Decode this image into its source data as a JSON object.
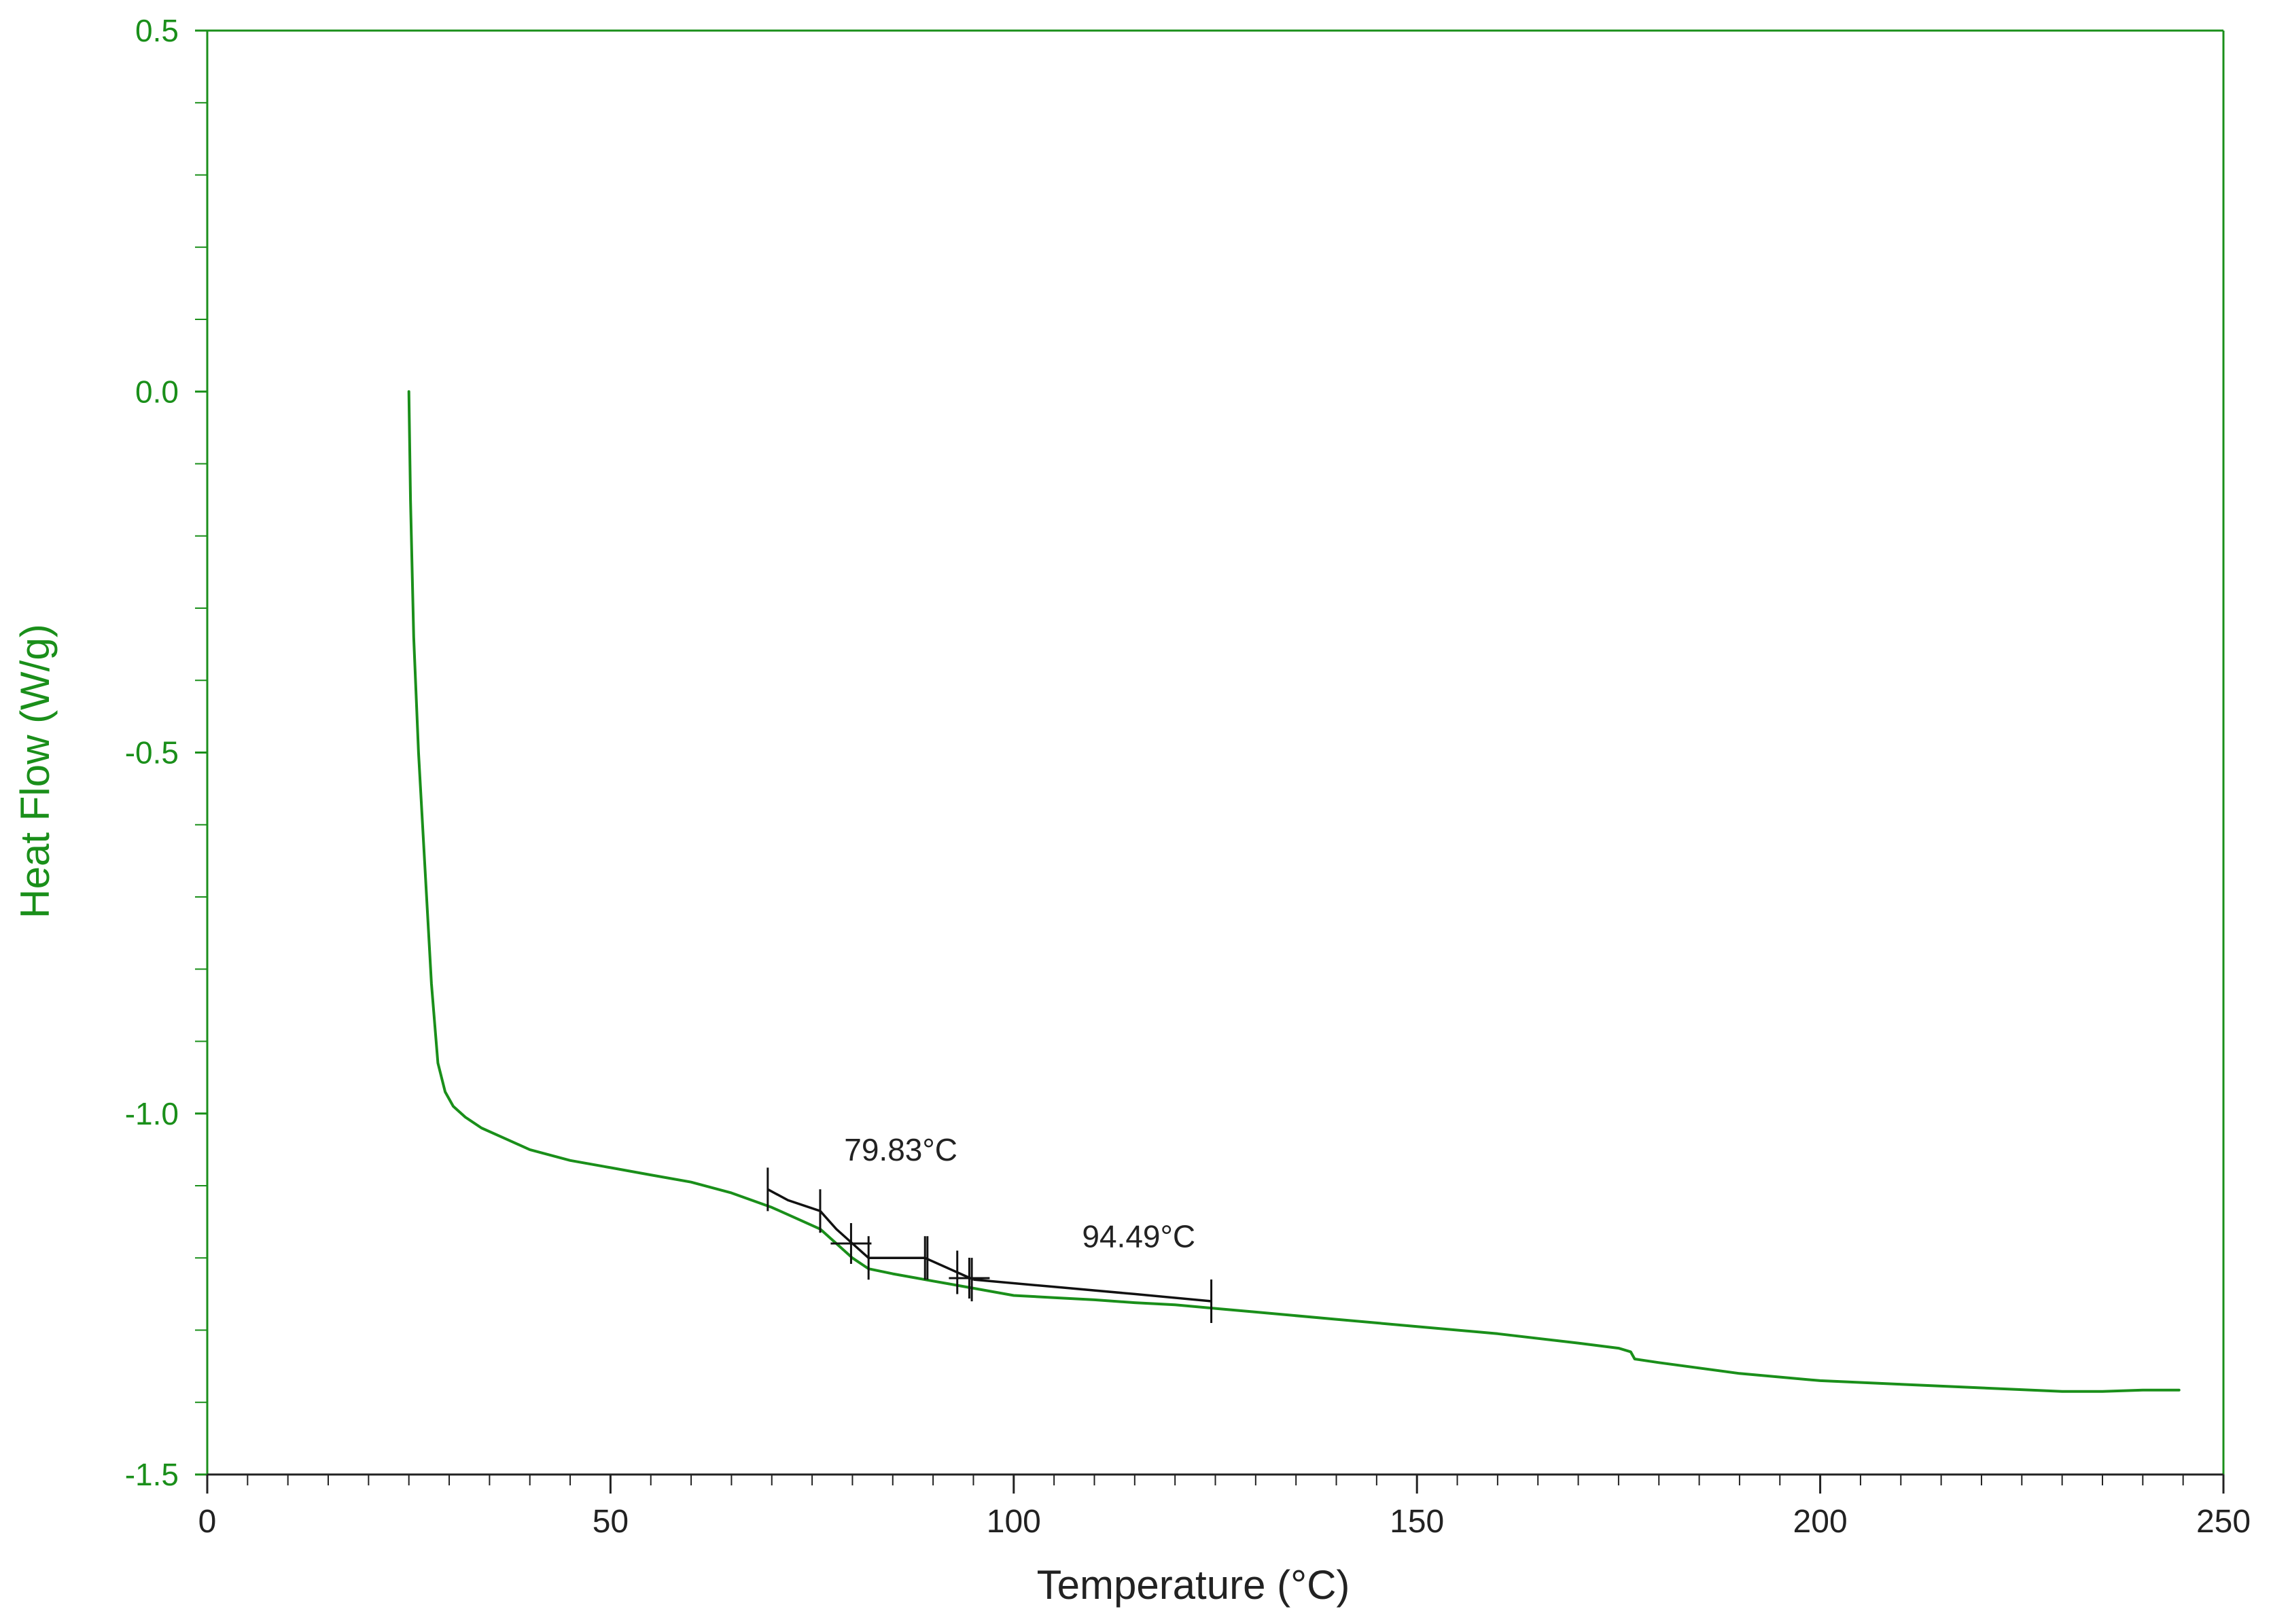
{
  "chart_data": {
    "type": "line",
    "title": "",
    "xlabel": "Temperature (°C)",
    "ylabel": "Heat Flow (W/g)",
    "xlim": [
      0,
      250
    ],
    "ylim": [
      -1.5,
      0.5
    ],
    "x_ticks": [
      0,
      50,
      100,
      150,
      200,
      250
    ],
    "x_tick_labels": [
      "0",
      "50",
      "100",
      "150",
      "200",
      "250"
    ],
    "y_ticks": [
      -1.5,
      -1.0,
      -0.5,
      0.0,
      0.5
    ],
    "y_tick_labels": [
      "-1.5",
      "-1.0",
      "-0.5",
      "0.0",
      "0.5"
    ],
    "grid": false,
    "colors": {
      "series": "#1a8f1a",
      "axis_y": "#1a8f1a",
      "axis_x": "#222222",
      "analysis": "#111111"
    },
    "series": [
      {
        "name": "Heat Flow",
        "x": [
          25.0,
          25.2,
          25.6,
          26.2,
          27.0,
          27.8,
          28.6,
          29.5,
          30.5,
          32.0,
          34.0,
          37.0,
          40.0,
          45.0,
          50.0,
          55.0,
          60.0,
          65.0,
          70.0,
          73.0,
          76.0,
          78.0,
          80.0,
          82.0,
          85.0,
          88.0,
          90.0,
          93.0,
          95.0,
          100.0,
          105.0,
          110.0,
          115.0,
          120.0,
          125.0,
          130.0,
          140.0,
          150.0,
          160.0,
          170.0,
          175.0,
          176.5,
          177.0,
          180.0,
          190.0,
          200.0,
          210.0,
          220.0,
          230.0,
          235.0,
          240.0,
          244.5
        ],
        "y": [
          0.0,
          -0.15,
          -0.34,
          -0.5,
          -0.66,
          -0.82,
          -0.93,
          -0.97,
          -0.99,
          -1.005,
          -1.02,
          -1.035,
          -1.05,
          -1.065,
          -1.075,
          -1.085,
          -1.095,
          -1.11,
          -1.13,
          -1.145,
          -1.16,
          -1.18,
          -1.2,
          -1.215,
          -1.222,
          -1.228,
          -1.232,
          -1.238,
          -1.242,
          -1.252,
          -1.255,
          -1.258,
          -1.262,
          -1.265,
          -1.27,
          -1.275,
          -1.285,
          -1.295,
          -1.305,
          -1.318,
          -1.325,
          -1.33,
          -1.34,
          -1.345,
          -1.36,
          -1.37,
          -1.375,
          -1.38,
          -1.385,
          -1.385,
          -1.383,
          -1.383
        ]
      }
    ],
    "analysis_lines": [
      {
        "x": [
          69.5,
          72.0,
          76.0
        ],
        "y": [
          -1.105,
          -1.12,
          -1.135
        ]
      },
      {
        "x": [
          76.0,
          78.0,
          80.0,
          82.0
        ],
        "y": [
          -1.135,
          -1.16,
          -1.18,
          -1.2
        ]
      },
      {
        "x": [
          82.0,
          86.0,
          89.0
        ],
        "y": [
          -1.2,
          -1.2,
          -1.2
        ]
      },
      {
        "x": [
          89.0,
          93.0,
          95.0
        ],
        "y": [
          -1.2,
          -1.22,
          -1.23
        ]
      },
      {
        "x": [
          95.0,
          105.0,
          115.0,
          124.5
        ],
        "y": [
          -1.23,
          -1.24,
          -1.25,
          -1.26
        ]
      }
    ],
    "analysis_markers": [
      {
        "x": 69.5,
        "y": -1.105,
        "kind": "v"
      },
      {
        "x": 76.0,
        "y": -1.135,
        "kind": "v"
      },
      {
        "x": 79.83,
        "y": -1.18,
        "kind": "plus"
      },
      {
        "x": 82.0,
        "y": -1.2,
        "kind": "v"
      },
      {
        "x": 89.0,
        "y": -1.2,
        "kind": "v"
      },
      {
        "x": 89.3,
        "y": -1.2,
        "kind": "v"
      },
      {
        "x": 93.0,
        "y": -1.22,
        "kind": "v"
      },
      {
        "x": 94.49,
        "y": -1.228,
        "kind": "plus"
      },
      {
        "x": 94.8,
        "y": -1.23,
        "kind": "v"
      },
      {
        "x": 124.5,
        "y": -1.26,
        "kind": "v"
      }
    ],
    "annotations": [
      {
        "text": "79.83°C",
        "x": 86.0,
        "y": -1.065
      },
      {
        "text": "94.49°C",
        "x": 115.5,
        "y": -1.185
      }
    ]
  }
}
